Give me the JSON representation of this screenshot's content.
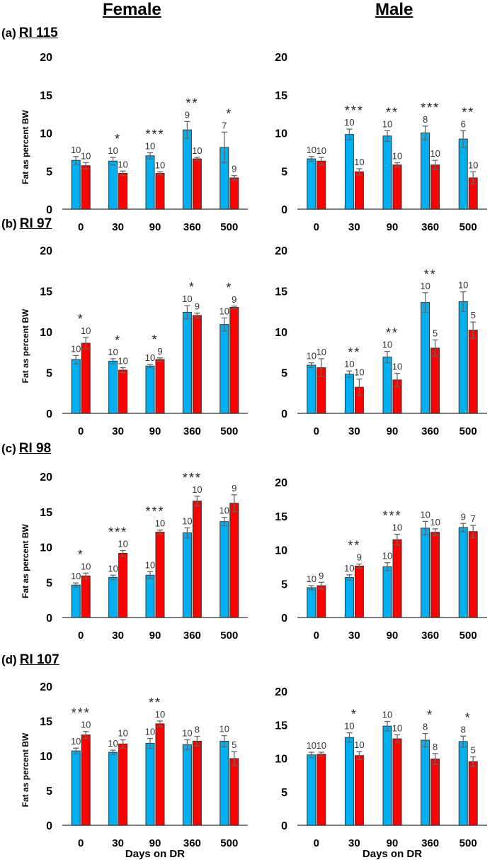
{
  "headers": {
    "female": "Female",
    "male": "Male"
  },
  "chart_data": [
    {
      "type": "bar",
      "panel": "(a)",
      "strain": "RI 115",
      "sex": "Female",
      "categories": [
        "0",
        "30",
        "90",
        "360",
        "500"
      ],
      "ylim": [
        0,
        20
      ],
      "yticks": [
        0,
        5,
        10,
        15,
        20
      ],
      "ylabel": "Fat as percent BW",
      "xlabel": "",
      "series": [
        {
          "name": "blue",
          "color": "#00b0f0",
          "values": [
            6.4,
            6.3,
            7.0,
            10.4,
            8.1
          ],
          "errors": [
            0.5,
            0.5,
            0.4,
            1.1,
            2.0
          ],
          "n": [
            "10",
            "10",
            "10",
            "9",
            "7"
          ]
        },
        {
          "name": "red",
          "color": "#ff0000",
          "values": [
            5.7,
            4.7,
            4.7,
            6.6,
            4.1
          ],
          "errors": [
            0.4,
            0.3,
            0.2,
            0.2,
            0.3
          ],
          "n": [
            "10",
            "10",
            "10",
            "10",
            "9"
          ]
        }
      ],
      "significance": [
        "",
        "*",
        "***",
        "**",
        "*"
      ]
    },
    {
      "type": "bar",
      "panel": "(a)",
      "strain": "RI 115",
      "sex": "Male",
      "categories": [
        "0",
        "30",
        "90",
        "360",
        "500"
      ],
      "ylim": [
        0,
        20
      ],
      "yticks": [
        0,
        5,
        10,
        15,
        20
      ],
      "ylabel": "",
      "xlabel": "",
      "series": [
        {
          "name": "blue",
          "color": "#00b0f0",
          "values": [
            6.6,
            9.8,
            9.6,
            10.0,
            9.2
          ],
          "errors": [
            0.3,
            0.7,
            0.7,
            0.9,
            1.1
          ],
          "n": [
            "10",
            "10",
            "10",
            "8",
            "6"
          ]
        },
        {
          "name": "red",
          "color": "#ff0000",
          "values": [
            6.3,
            4.9,
            5.8,
            5.8,
            4.1
          ],
          "errors": [
            0.5,
            0.4,
            0.3,
            0.6,
            0.8
          ],
          "n": [
            "10",
            "10",
            "10",
            "10",
            "10"
          ]
        }
      ],
      "significance": [
        "",
        "***",
        "**",
        "***",
        "**"
      ]
    },
    {
      "type": "bar",
      "panel": "(b)",
      "strain": "RI 97",
      "sex": "Female",
      "categories": [
        "0",
        "30",
        "90",
        "360",
        "500"
      ],
      "ylim": [
        0,
        20
      ],
      "yticks": [
        0,
        5,
        10,
        15,
        20
      ],
      "ylabel": "Fat as percent BW",
      "xlabel": "",
      "series": [
        {
          "name": "blue",
          "color": "#00b0f0",
          "values": [
            6.6,
            6.4,
            5.8,
            12.4,
            10.9
          ],
          "errors": [
            0.5,
            0.3,
            0.2,
            0.8,
            0.8
          ],
          "n": [
            "10",
            "10",
            "10",
            "10",
            "10"
          ]
        },
        {
          "name": "red",
          "color": "#ff0000",
          "values": [
            8.6,
            5.3,
            6.6,
            12.0,
            13.0
          ],
          "errors": [
            0.7,
            0.3,
            0.2,
            0.3,
            0.15
          ],
          "n": [
            "10",
            "10",
            "9",
            "9",
            "9"
          ]
        }
      ],
      "significance": [
        "*",
        "*",
        "*",
        "*",
        "*"
      ]
    },
    {
      "type": "bar",
      "panel": "(b)",
      "strain": "RI 97",
      "sex": "Male",
      "categories": [
        "0",
        "30",
        "90",
        "360",
        "500"
      ],
      "ylim": [
        0,
        20
      ],
      "yticks": [
        0,
        5,
        10,
        15,
        20
      ],
      "ylabel": "",
      "xlabel": "",
      "series": [
        {
          "name": "blue",
          "color": "#00b0f0",
          "values": [
            5.9,
            4.8,
            6.9,
            13.6,
            13.7
          ],
          "errors": [
            0.3,
            0.4,
            0.7,
            1.2,
            1.2
          ],
          "n": [
            "10",
            "10",
            "10",
            "10",
            "10"
          ]
        },
        {
          "name": "red",
          "color": "#ff0000",
          "values": [
            5.6,
            3.2,
            4.1,
            8.0,
            10.2
          ],
          "errors": [
            1.1,
            1.0,
            0.8,
            1.0,
            1.0
          ],
          "n": [
            "10",
            "10",
            "10",
            "5",
            "5"
          ]
        }
      ],
      "significance": [
        "",
        "**",
        "**",
        "**",
        ""
      ]
    },
    {
      "type": "bar",
      "panel": "(c)",
      "strain": "RI 98",
      "sex": "Female",
      "categories": [
        "0",
        "30",
        "90",
        "360",
        "500"
      ],
      "ylim": [
        0,
        20
      ],
      "yticks": [
        0,
        5,
        10,
        15,
        20
      ],
      "ylabel": "Fat as percent BW",
      "xlabel": "",
      "series": [
        {
          "name": "blue",
          "color": "#00b0f0",
          "values": [
            4.6,
            5.7,
            6.0,
            12.0,
            13.6
          ],
          "errors": [
            0.3,
            0.3,
            0.5,
            0.7,
            0.6
          ],
          "n": [
            "10",
            "10",
            "10",
            "10",
            "10"
          ]
        },
        {
          "name": "red",
          "color": "#ff0000",
          "values": [
            5.9,
            9.1,
            12.1,
            16.5,
            16.2
          ],
          "errors": [
            0.4,
            0.4,
            0.3,
            0.7,
            1.2
          ],
          "n": [
            "10",
            "10",
            "10",
            "10",
            "9"
          ]
        }
      ],
      "significance": [
        "*",
        "***",
        "***",
        "***",
        ""
      ]
    },
    {
      "type": "bar",
      "panel": "(c)",
      "strain": "RI 98",
      "sex": "Male",
      "categories": [
        "0",
        "30",
        "90",
        "360",
        "500"
      ],
      "ylim": [
        0,
        20
      ],
      "yticks": [
        0,
        5,
        10,
        15,
        20
      ],
      "ylabel": "",
      "xlabel": "",
      "series": [
        {
          "name": "blue",
          "color": "#00b0f0",
          "values": [
            4.4,
            5.9,
            7.5,
            13.2,
            13.3
          ],
          "errors": [
            0.3,
            0.4,
            0.6,
            1.0,
            0.6
          ],
          "n": [
            "10",
            "10",
            "10",
            "10",
            "9"
          ]
        },
        {
          "name": "red",
          "color": "#ff0000",
          "values": [
            4.7,
            7.6,
            11.5,
            12.6,
            12.7
          ],
          "errors": [
            0.5,
            0.3,
            0.8,
            0.5,
            0.9
          ],
          "n": [
            "9",
            "9",
            "10",
            "10",
            "7"
          ]
        }
      ],
      "significance": [
        "",
        "**",
        "***",
        "",
        ""
      ]
    },
    {
      "type": "bar",
      "panel": "(d)",
      "strain": "RI 107",
      "sex": "Female",
      "categories": [
        "0",
        "30",
        "90",
        "360",
        "500"
      ],
      "ylim": [
        0,
        20
      ],
      "yticks": [
        0,
        5,
        10,
        15,
        20
      ],
      "ylabel": "Fat as percent BW",
      "xlabel": "Days on DR",
      "series": [
        {
          "name": "blue",
          "color": "#00b0f0",
          "values": [
            10.7,
            10.5,
            11.8,
            11.6,
            12.1
          ],
          "errors": [
            0.4,
            0.3,
            0.7,
            0.7,
            0.8
          ],
          "n": [
            "10",
            "10",
            "10",
            "10",
            "10"
          ]
        },
        {
          "name": "red",
          "color": "#ff0000",
          "values": [
            13.0,
            11.7,
            14.6,
            12.1,
            9.6
          ],
          "errors": [
            0.5,
            0.6,
            0.4,
            0.7,
            1.0
          ],
          "n": [
            "10",
            "10",
            "10",
            "8",
            "5"
          ]
        }
      ],
      "significance": [
        "***",
        "",
        "**",
        "",
        ""
      ]
    },
    {
      "type": "bar",
      "panel": "(d)",
      "strain": "RI 107",
      "sex": "Male",
      "categories": [
        "0",
        "30",
        "90",
        "360",
        "500"
      ],
      "ylim": [
        0,
        20
      ],
      "yticks": [
        0,
        5,
        10,
        15,
        20
      ],
      "ylabel": "",
      "xlabel": "Days on DR",
      "series": [
        {
          "name": "blue",
          "color": "#00b0f0",
          "values": [
            10.5,
            13.1,
            14.8,
            12.7,
            12.5
          ],
          "errors": [
            0.4,
            0.7,
            0.7,
            1.0,
            0.8
          ],
          "n": [
            "10",
            "10",
            "10",
            "8",
            "8"
          ]
        },
        {
          "name": "red",
          "color": "#ff0000",
          "values": [
            10.6,
            10.4,
            12.9,
            9.9,
            9.5
          ],
          "errors": [
            0.3,
            0.6,
            0.6,
            0.8,
            0.7
          ],
          "n": [
            "10",
            "10",
            "10",
            "8",
            "5"
          ]
        }
      ],
      "significance": [
        "",
        "*",
        "",
        "*",
        "*"
      ]
    }
  ]
}
